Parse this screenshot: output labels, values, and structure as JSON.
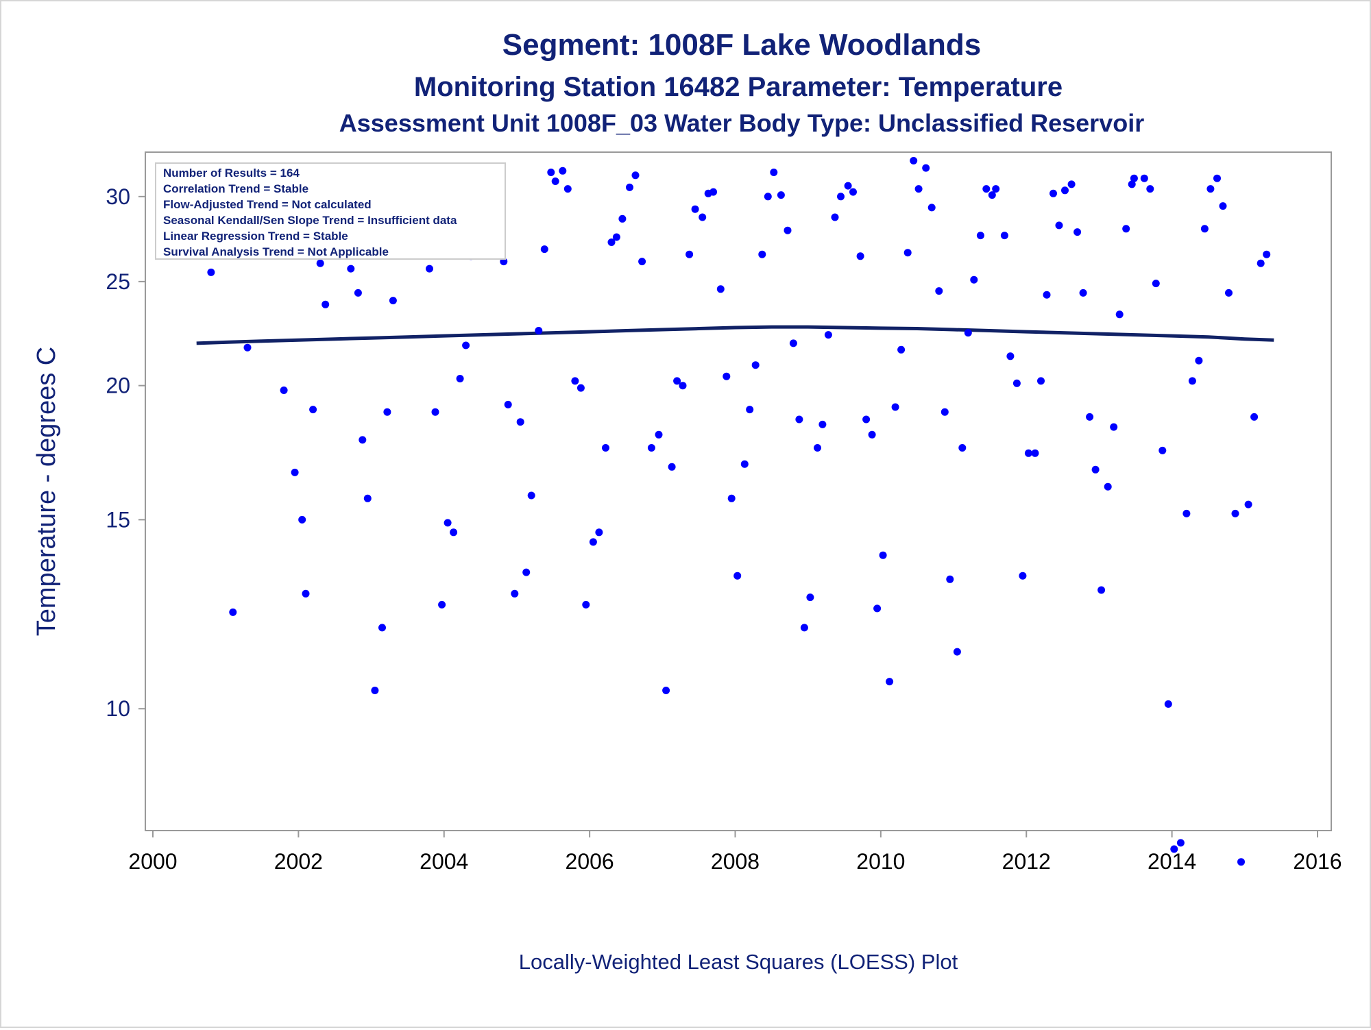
{
  "chart_data": {
    "type": "scatter",
    "title": "Segment: 1008F  Lake Woodlands",
    "subtitle1": "Monitoring Station 16482 Parameter: Temperature",
    "subtitle2": "Assessment Unit 1008F_03   Water Body Type: Unclassified Reservoir",
    "ylabel": "Temperature - degrees C",
    "footnote": "Locally-Weighted Least Squares (LOESS) Plot",
    "y_scale": "log",
    "xlim": [
      2000,
      2016
    ],
    "ylim": [
      7.7,
      33
    ],
    "x_ticks": [
      "2000",
      "2002",
      "2004",
      "2006",
      "2008",
      "2010",
      "2012",
      "2014",
      "2016"
    ],
    "y_ticks": [
      "10",
      "15",
      "20",
      "25",
      "30"
    ],
    "grid": false,
    "legend": "none",
    "colors": {
      "points": "#0000ff",
      "loess": "#112266",
      "text": "#112277",
      "axis": "#999999"
    },
    "annotations": [
      "Number of Results = 164",
      "Correlation Trend = Stable",
      "Flow-Adjusted Trend = Not calculated",
      "Seasonal Kendall/Sen Slope Trend = Insufficient data",
      "Linear Regression Trend = Stable",
      "Survival Analysis Trend = Not Applicable"
    ],
    "series": [
      {
        "type": "scatter",
        "x": [
          2000.57,
          2000.8,
          2001.1,
          2001.3,
          2001.55,
          2001.8,
          2001.95,
          2002.05,
          2002.1,
          2002.2,
          2002.3,
          2002.37,
          2002.55,
          2002.72,
          2002.82,
          2002.88,
          2002.95,
          2003.05,
          2003.15,
          2003.22,
          2003.3,
          2003.37,
          2003.42,
          2003.55,
          2003.65,
          2003.72,
          2003.8,
          2003.88,
          2003.97,
          2004.05,
          2004.13,
          2004.22,
          2004.3,
          2004.37,
          2004.48,
          2004.55,
          2004.63,
          2004.72,
          2004.82,
          2004.88,
          2004.97,
          2005.05,
          2005.13,
          2005.2,
          2005.3,
          2005.38,
          2005.47,
          2005.53,
          2005.63,
          2005.7,
          2005.8,
          2005.88,
          2005.95,
          2006.05,
          2006.13,
          2006.22,
          2006.3,
          2006.37,
          2006.45,
          2006.55,
          2006.63,
          2006.72,
          2006.85,
          2006.95,
          2007.05,
          2007.13,
          2007.2,
          2007.28,
          2007.37,
          2007.45,
          2007.55,
          2007.63,
          2007.7,
          2007.8,
          2007.88,
          2007.95,
          2008.03,
          2008.13,
          2008.2,
          2008.28,
          2008.37,
          2008.45,
          2008.53,
          2008.63,
          2008.72,
          2008.8,
          2008.88,
          2008.95,
          2009.03,
          2009.13,
          2009.2,
          2009.28,
          2009.37,
          2009.45,
          2009.55,
          2009.62,
          2009.72,
          2009.8,
          2009.88,
          2009.95,
          2010.03,
          2010.12,
          2010.2,
          2010.28,
          2010.37,
          2010.45,
          2010.52,
          2010.62,
          2010.7,
          2010.8,
          2010.88,
          2010.95,
          2011.05,
          2011.12,
          2011.2,
          2011.28,
          2011.37,
          2011.45,
          2011.53,
          2011.58,
          2011.7,
          2011.78,
          2011.87,
          2011.95,
          2012.03,
          2012.12,
          2012.2,
          2012.28,
          2012.37,
          2012.45,
          2012.53,
          2012.62,
          2012.7,
          2012.78,
          2012.87,
          2012.95,
          2013.03,
          2013.12,
          2013.2,
          2013.28,
          2013.37,
          2013.45,
          2013.48,
          2013.62,
          2013.7,
          2013.78,
          2013.87,
          2013.95,
          2014.03,
          2014.12,
          2014.2,
          2014.28,
          2014.37,
          2014.45,
          2014.53,
          2014.62,
          2014.7,
          2014.78,
          2014.87,
          2014.95,
          2015.05,
          2015.13,
          2015.22,
          2015.3
        ],
        "y": [
          30.8,
          25.5,
          12.3,
          21.7,
          31.5,
          19.8,
          16.6,
          15.0,
          12.8,
          19.0,
          26.0,
          23.8,
          29.8,
          25.7,
          24.4,
          17.8,
          15.7,
          10.4,
          11.9,
          18.9,
          24.0,
          30.2,
          29.8,
          29.3,
          30.1,
          27.2,
          25.7,
          18.9,
          12.5,
          14.9,
          14.6,
          20.3,
          21.8,
          26.4,
          26.6,
          30.2,
          29.6,
          30.6,
          26.1,
          19.2,
          12.8,
          18.5,
          13.4,
          15.8,
          22.5,
          26.8,
          31.6,
          31.0,
          31.7,
          30.5,
          20.2,
          19.9,
          12.5,
          14.3,
          14.6,
          17.5,
          27.2,
          27.5,
          28.6,
          30.6,
          31.4,
          26.1,
          17.5,
          18.0,
          10.4,
          16.8,
          20.2,
          20.0,
          26.5,
          29.2,
          28.7,
          30.2,
          30.3,
          24.6,
          20.4,
          15.7,
          13.3,
          16.9,
          19.0,
          20.9,
          26.5,
          30.0,
          31.6,
          30.1,
          27.9,
          21.9,
          18.6,
          11.9,
          12.7,
          17.5,
          18.4,
          22.3,
          28.7,
          30.0,
          30.7,
          30.3,
          26.4,
          18.6,
          18.0,
          12.4,
          13.9,
          10.6,
          19.1,
          21.6,
          26.6,
          32.4,
          30.5,
          31.9,
          29.3,
          24.5,
          18.9,
          13.2,
          11.3,
          17.5,
          22.4,
          25.1,
          27.6,
          30.5,
          30.1,
          30.5,
          27.6,
          21.3,
          20.1,
          13.3,
          17.3,
          17.3,
          20.2,
          24.3,
          30.2,
          28.2,
          30.4,
          30.8,
          27.8,
          24.4,
          18.7,
          16.7,
          12.9,
          16.1,
          18.3,
          23.3,
          28.0,
          30.8,
          31.2,
          31.2,
          30.5,
          24.9,
          17.4,
          10.1,
          7.4,
          7.5,
          15.2,
          20.2,
          21.1,
          28.0,
          30.5,
          31.2,
          29.4,
          24.4,
          15.2,
          7.2,
          15.5,
          18.7,
          26.0,
          26.5
        ]
      },
      {
        "type": "line",
        "name": "LOESS",
        "x": [
          2000.6,
          2001,
          2001.5,
          2002,
          2002.5,
          2003,
          2003.5,
          2004,
          2004.5,
          2005,
          2005.5,
          2006,
          2006.5,
          2007,
          2007.5,
          2008,
          2008.5,
          2009,
          2009.5,
          2010,
          2010.5,
          2011,
          2011.5,
          2012,
          2012.5,
          2013,
          2013.5,
          2014,
          2014.5,
          2015,
          2015.4
        ],
        "y": [
          21.9,
          21.95,
          22.0,
          22.05,
          22.1,
          22.15,
          22.2,
          22.25,
          22.3,
          22.35,
          22.4,
          22.45,
          22.5,
          22.55,
          22.6,
          22.65,
          22.68,
          22.68,
          22.65,
          22.62,
          22.6,
          22.55,
          22.5,
          22.45,
          22.4,
          22.35,
          22.3,
          22.25,
          22.2,
          22.1,
          22.05
        ]
      }
    ]
  }
}
